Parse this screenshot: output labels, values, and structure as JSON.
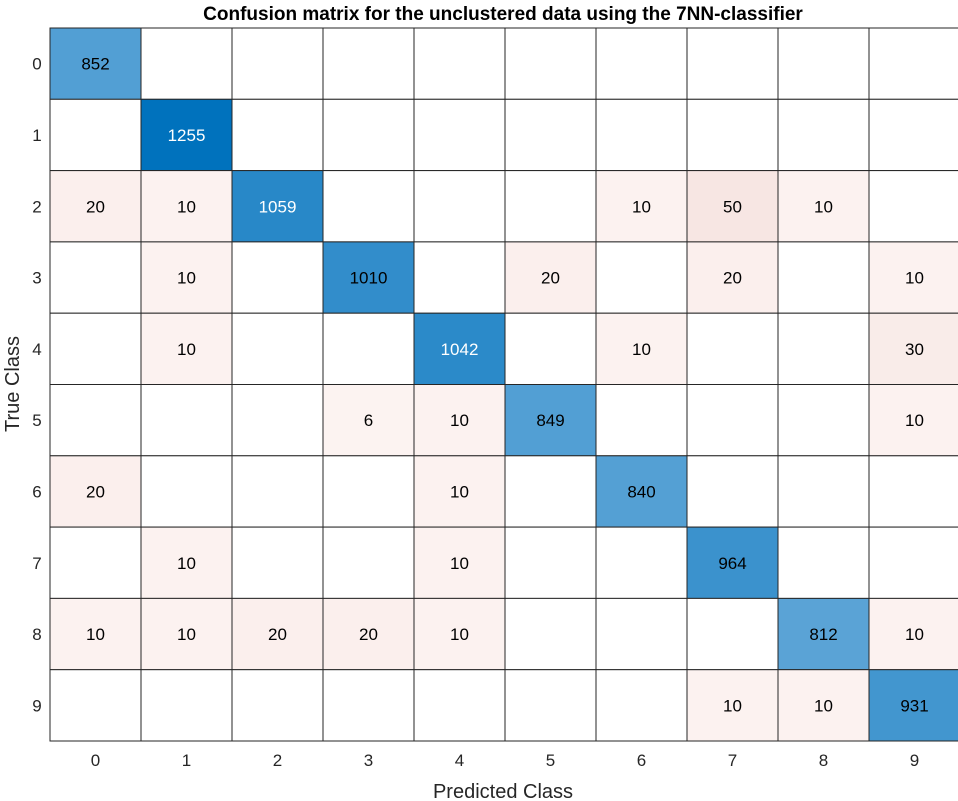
{
  "chart_data": {
    "type": "heatmap",
    "title": "Confusion matrix for the unclustered data using the 7NN-classifier",
    "xlabel": "Predicted Class",
    "ylabel": "True Class",
    "row_labels": [
      "0",
      "1",
      "2",
      "3",
      "4",
      "5",
      "6",
      "7",
      "8",
      "9"
    ],
    "col_labels": [
      "0",
      "1",
      "2",
      "3",
      "4",
      "5",
      "6",
      "7",
      "8",
      "9"
    ],
    "matrix": [
      [
        852,
        0,
        0,
        0,
        0,
        0,
        0,
        0,
        0,
        0
      ],
      [
        0,
        1255,
        0,
        0,
        0,
        0,
        0,
        0,
        0,
        0
      ],
      [
        20,
        10,
        1059,
        0,
        0,
        0,
        10,
        50,
        10,
        0
      ],
      [
        0,
        10,
        0,
        1010,
        0,
        20,
        0,
        20,
        0,
        10
      ],
      [
        0,
        10,
        0,
        0,
        1042,
        0,
        10,
        0,
        0,
        30
      ],
      [
        0,
        0,
        0,
        6,
        10,
        849,
        0,
        0,
        0,
        10
      ],
      [
        20,
        0,
        0,
        0,
        10,
        0,
        840,
        0,
        0,
        0
      ],
      [
        0,
        10,
        0,
        0,
        10,
        0,
        0,
        964,
        0,
        0
      ],
      [
        10,
        10,
        20,
        20,
        10,
        0,
        0,
        0,
        812,
        10
      ],
      [
        0,
        0,
        0,
        0,
        0,
        0,
        0,
        10,
        10,
        931
      ]
    ],
    "colors": {
      "diagonal_high": "#0072bd",
      "diagonal_low": "#5aa3d6",
      "off_diagonal_high": "#f7e6e3",
      "off_diagonal_low": "#fdf5f3",
      "grid": "#262626"
    }
  }
}
